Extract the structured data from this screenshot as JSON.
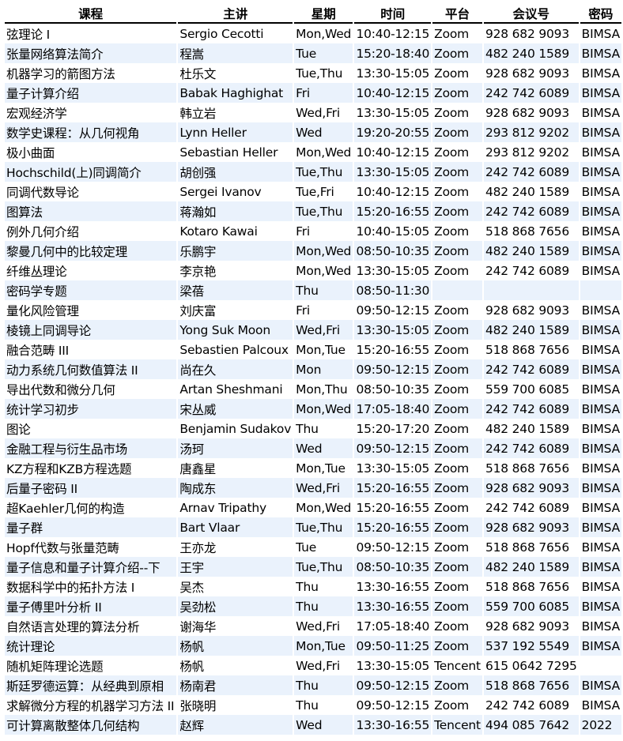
{
  "headers": [
    "课程",
    "主讲",
    "星期",
    "时间",
    "平台",
    "会议号",
    "密码"
  ],
  "colors": {
    "row_alt": "#eaf2fc",
    "header_rule": "#000000"
  },
  "rows": [
    [
      "弦理论 I",
      "Sergio Cecotti",
      "Mon,Wed",
      "10:40-12:15",
      "Zoom",
      "928 682 9093",
      "BIMSA"
    ],
    [
      "张量网络算法简介",
      "程嵩",
      "Tue",
      "15:20-18:40",
      "Zoom",
      "482 240 1589",
      "BIMSA"
    ],
    [
      "机器学习的箭图方法",
      "杜乐文",
      "Tue,Thu",
      "13:30-15:05",
      "Zoom",
      "928 682 9093",
      "BIMSA"
    ],
    [
      "量子计算介绍",
      "Babak Haghighat",
      "Fri",
      "10:40-12:15",
      "Zoom",
      "242 742 6089",
      "BIMSA"
    ],
    [
      "宏观经济学",
      "韩立岩",
      "Wed,Fri",
      "13:30-15:05",
      "Zoom",
      "928 682 9093",
      "BIMSA"
    ],
    [
      "数学史课程：从几何视角",
      "Lynn Heller",
      "Wed",
      "19:20-20:55",
      "Zoom",
      "293 812 9202",
      "BIMSA"
    ],
    [
      "极小曲面",
      "Sebastian Heller",
      "Mon,Wed",
      "10:40-12:15",
      "Zoom",
      "293 812 9202",
      "BIMSA"
    ],
    [
      "Hochschild(上)同调简介",
      "胡创强",
      "Tue,Thu",
      "13:30-15:05",
      "Zoom",
      "242 742 6089",
      "BIMSA"
    ],
    [
      "同调代数导论",
      "Sergei Ivanov",
      "Tue,Fri",
      "10:40-12:15",
      "Zoom",
      "482 240 1589",
      "BIMSA"
    ],
    [
      "图算法",
      "蒋瀚如",
      "Tue,Thu",
      "15:20-16:55",
      "Zoom",
      "242 742 6089",
      "BIMSA"
    ],
    [
      "例外几何介绍",
      "Kotaro Kawai",
      "Fri",
      "10:40-15:05",
      "Zoom",
      "518 868 7656",
      "BIMSA"
    ],
    [
      "黎曼几何中的比较定理",
      "乐鹏宇",
      "Mon,Wed",
      "08:50-10:35",
      "Zoom",
      "482 240 1589",
      "BIMSA"
    ],
    [
      "纤维丛理论",
      "李京艳",
      "Mon,Wed",
      "13:30-15:05",
      "Zoom",
      "242 742 6089",
      "BIMSA"
    ],
    [
      "密码学专题",
      "梁蓓",
      "Thu",
      "08:50-11:30",
      "",
      "",
      ""
    ],
    [
      "量化风险管理",
      "刘庆富",
      "Fri",
      "09:50-12:15",
      "Zoom",
      "928 682 9093",
      "BIMSA"
    ],
    [
      "棱镜上同调导论",
      "Yong Suk Moon",
      "Wed,Fri",
      "13:30-15:05",
      "Zoom",
      "482 240 1589",
      "BIMSA"
    ],
    [
      "融合范畴 III",
      "Sebastien Palcoux",
      "Mon,Tue",
      "15:20-16:55",
      "Zoom",
      "518 868 7656",
      "BIMSA"
    ],
    [
      "动力系统几何数值算法 II",
      "尚在久",
      "Mon",
      "09:50-12:15",
      "Zoom",
      "242 742 6089",
      "BIMSA"
    ],
    [
      "导出代数和微分几何",
      "Artan Sheshmani",
      "Mon,Thu",
      "08:50-10:35",
      "Zoom",
      "559 700 6085",
      "BIMSA"
    ],
    [
      "统计学习初步",
      "宋丛威",
      "Mon,Wed",
      "17:05-18:40",
      "Zoom",
      "242 742 6089",
      "BIMSA"
    ],
    [
      "图论",
      "Benjamin Sudakov",
      "Thu",
      "15:20-17:20",
      "Zoom",
      "482 240 1589",
      "BIMSA"
    ],
    [
      "金融工程与衍生品市场",
      "汤珂",
      "Wed",
      "09:50-12:15",
      "Zoom",
      "242 742 6089",
      "BIMSA"
    ],
    [
      "KZ方程和KZB方程选题",
      "唐鑫星",
      "Mon,Tue",
      "13:30-15:05",
      "Zoom",
      "518 868 7656",
      "BIMSA"
    ],
    [
      "后量子密码 II",
      "陶成东",
      "Wed,Fri",
      "15:20-16:55",
      "Zoom",
      "928 682 9093",
      "BIMSA"
    ],
    [
      "超Kaehler几何的构造",
      "Arnav Tripathy",
      "Mon,Wed",
      "15:20-16:55",
      "Zoom",
      "242 742 6089",
      "BIMSA"
    ],
    [
      "量子群",
      "Bart Vlaar",
      "Tue,Thu",
      "15:20-16:55",
      "Zoom",
      "928 682 9093",
      "BIMSA"
    ],
    [
      "Hopf代数与张量范畴",
      "王亦龙",
      "Tue",
      "09:50-12:15",
      "Zoom",
      "518 868 7656",
      "BIMSA"
    ],
    [
      "量子信息和量子计算介绍--下",
      "王宇",
      "Tue,Thu",
      "08:50-10:35",
      "Zoom",
      "482 240 1589",
      "BIMSA"
    ],
    [
      "数据科学中的拓扑方法 I",
      "吴杰",
      "Thu",
      "13:30-16:55",
      "Zoom",
      "518 868 7656",
      "BIMSA"
    ],
    [
      "量子傅里叶分析 II",
      "吴劲松",
      "Thu",
      "13:30-16:55",
      "Zoom",
      "559 700 6085",
      "BIMSA"
    ],
    [
      "自然语言处理的算法分析",
      "谢海华",
      "Wed,Fri",
      "17:05-18:40",
      "Zoom",
      "928 682 9093",
      "BIMSA"
    ],
    [
      "统计理论",
      "杨帆",
      "Mon,Tue",
      "09:50-11:25",
      "Zoom",
      "537 192 5549",
      "BIMSA"
    ],
    [
      "随机矩阵理论选题",
      "杨帆",
      "Wed,Fri",
      "13:30-15:05",
      "Tencent",
      "615 0642 7295",
      ""
    ],
    [
      "斯廷罗德运算：从经典到原相",
      "杨南君",
      "Thu",
      "09:50-12:15",
      "Zoom",
      "518 868 7656",
      "BIMSA"
    ],
    [
      "求解微分方程的机器学习方法 II",
      "张晓明",
      "Thu",
      "09:50-12:15",
      "Zoom",
      "242 742 6089",
      "BIMSA"
    ],
    [
      "可计算离散整体几何结构",
      "赵辉",
      "Wed",
      "13:30-16:55",
      "Tencent",
      "494 085 7642",
      "2022"
    ]
  ]
}
